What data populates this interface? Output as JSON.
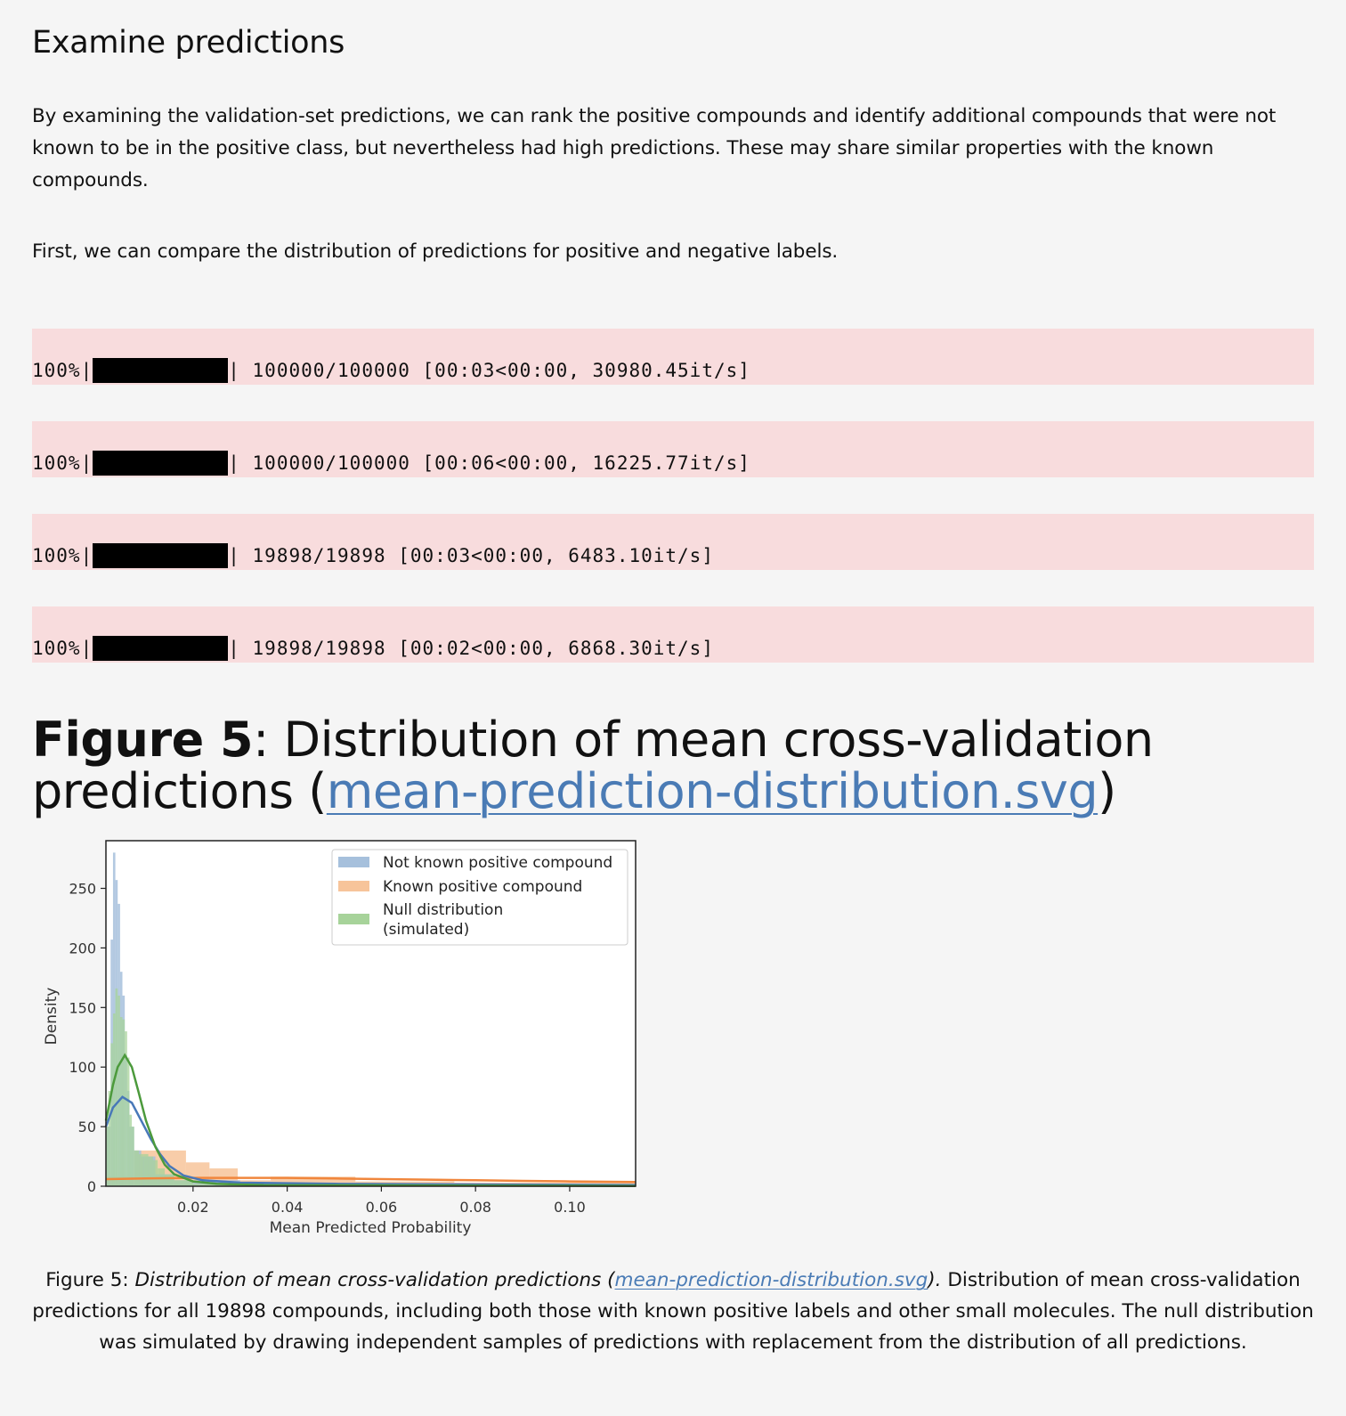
{
  "heading": "Examine predictions",
  "paragraphs": [
    "By examining the validation-set predictions, we can rank the positive compounds and identify additional compounds that were not known to be in the positive class, but nevertheless had high predictions. These may share similar properties with the known compounds.",
    "First, we can compare the distribution of predictions for positive and negative labels."
  ],
  "progress_bars": [
    {
      "percent": "100%",
      "fraction": 1.0,
      "text": "100000/100000 [00:03<00:00, 30980.45it/s]"
    },
    {
      "percent": "100%",
      "fraction": 1.0,
      "text": "100000/100000 [00:06<00:00, 16225.77it/s]"
    },
    {
      "percent": "100%",
      "fraction": 1.0,
      "text": "19898/19898 [00:03<00:00, 6483.10it/s]"
    },
    {
      "percent": "100%",
      "fraction": 1.0,
      "text": "19898/19898 [00:02<00:00, 6868.30it/s]"
    }
  ],
  "figure": {
    "label": "Figure 5",
    "title_rest": ": Distribution of mean cross-validation predictions (",
    "link_text": "mean-prediction-distribution.svg",
    "close": ")",
    "caption_label": "Figure 5",
    "caption_colon": ": ",
    "caption_italic": "Distribution of mean cross-validation predictions (",
    "caption_link": "mean-prediction-distribution.svg",
    "caption_italic_close": ").",
    "caption_text": " Distribution of mean cross-validation predictions for all 19898 compounds, including both those with known positive labels and other small molecules. The null distribution was simulated by drawing independent samples of predictions with replacement from the distribution of all predictions."
  },
  "chart_data": {
    "type": "histogram",
    "xlabel": "Mean Predicted Probability",
    "ylabel": "Density",
    "xlim": [
      0.0015,
      0.114
    ],
    "ylim": [
      0,
      290
    ],
    "xticks": [
      "0.02",
      "0.04",
      "0.06",
      "0.08",
      "0.10"
    ],
    "xtick_values": [
      0.02,
      0.04,
      0.06,
      0.08,
      0.1
    ],
    "yticks": [
      "0",
      "50",
      "100",
      "150",
      "200",
      "250"
    ],
    "ytick_values": [
      0,
      50,
      100,
      150,
      200,
      250
    ],
    "legend_position": "top-right",
    "series": [
      {
        "name": "Not known positive compound",
        "color": "#a6c0dc",
        "line_color": "#4878b8",
        "bins": [
          [
            0.0015,
            0.0025,
            50
          ],
          [
            0.0025,
            0.003,
            207
          ],
          [
            0.003,
            0.0035,
            280
          ],
          [
            0.0035,
            0.004,
            257
          ],
          [
            0.004,
            0.0045,
            237
          ],
          [
            0.0045,
            0.005,
            180
          ],
          [
            0.005,
            0.0055,
            160
          ],
          [
            0.0055,
            0.006,
            110
          ],
          [
            0.006,
            0.0065,
            80
          ],
          [
            0.0065,
            0.0075,
            50
          ],
          [
            0.0075,
            0.009,
            30
          ],
          [
            0.009,
            0.012,
            25
          ],
          [
            0.012,
            0.016,
            10
          ],
          [
            0.016,
            0.03,
            5
          ],
          [
            0.03,
            0.05,
            3
          ],
          [
            0.05,
            0.114,
            2
          ]
        ],
        "kde": [
          [
            0.0015,
            50
          ],
          [
            0.003,
            66
          ],
          [
            0.005,
            75
          ],
          [
            0.007,
            70
          ],
          [
            0.009,
            55
          ],
          [
            0.011,
            40
          ],
          [
            0.013,
            27
          ],
          [
            0.015,
            17
          ],
          [
            0.018,
            9
          ],
          [
            0.022,
            5
          ],
          [
            0.03,
            3
          ],
          [
            0.05,
            2
          ],
          [
            0.08,
            1.5
          ],
          [
            0.114,
            1
          ]
        ]
      },
      {
        "name": "Known positive compound",
        "color": "#f7c49a",
        "line_color": "#f0863c",
        "bins": [
          [
            0.0015,
            0.0075,
            8
          ],
          [
            0.0075,
            0.0125,
            30
          ],
          [
            0.0125,
            0.0185,
            30
          ],
          [
            0.0185,
            0.0235,
            20
          ],
          [
            0.0235,
            0.0295,
            15
          ],
          [
            0.0295,
            0.0365,
            5
          ],
          [
            0.0365,
            0.0545,
            8
          ],
          [
            0.0545,
            0.0755,
            4
          ],
          [
            0.0755,
            0.114,
            3
          ]
        ],
        "kde": [
          [
            0.0015,
            6
          ],
          [
            0.01,
            6.5
          ],
          [
            0.02,
            7
          ],
          [
            0.03,
            7
          ],
          [
            0.04,
            7
          ],
          [
            0.05,
            6.5
          ],
          [
            0.06,
            6
          ],
          [
            0.07,
            5.5
          ],
          [
            0.08,
            5
          ],
          [
            0.09,
            4.5
          ],
          [
            0.1,
            4
          ],
          [
            0.114,
            3.5
          ]
        ]
      },
      {
        "name": "Null distribution\n(simulated)",
        "legend_lines": [
          "Null distribution",
          "(simulated)"
        ],
        "color": "#a7d39a",
        "line_color": "#4c9a3c",
        "bins": [
          [
            0.0015,
            0.002,
            50
          ],
          [
            0.002,
            0.0025,
            80
          ],
          [
            0.0025,
            0.003,
            120
          ],
          [
            0.003,
            0.0035,
            145
          ],
          [
            0.0035,
            0.004,
            166
          ],
          [
            0.004,
            0.0045,
            160
          ],
          [
            0.0045,
            0.005,
            142
          ],
          [
            0.005,
            0.0055,
            140
          ],
          [
            0.0055,
            0.006,
            130
          ],
          [
            0.006,
            0.0065,
            108
          ],
          [
            0.0065,
            0.007,
            60
          ],
          [
            0.007,
            0.0075,
            50
          ],
          [
            0.0075,
            0.0085,
            30
          ],
          [
            0.0085,
            0.0095,
            27
          ],
          [
            0.0095,
            0.0105,
            27
          ],
          [
            0.0105,
            0.0115,
            25
          ],
          [
            0.0115,
            0.0125,
            22
          ],
          [
            0.0125,
            0.014,
            15
          ],
          [
            0.014,
            0.016,
            10
          ],
          [
            0.016,
            0.02,
            5
          ],
          [
            0.02,
            0.03,
            2
          ]
        ],
        "kde": [
          [
            0.0015,
            55
          ],
          [
            0.003,
            85
          ],
          [
            0.004,
            100
          ],
          [
            0.0055,
            110
          ],
          [
            0.007,
            100
          ],
          [
            0.0085,
            78
          ],
          [
            0.01,
            55
          ],
          [
            0.012,
            33
          ],
          [
            0.014,
            18
          ],
          [
            0.016,
            10
          ],
          [
            0.02,
            4
          ],
          [
            0.025,
            2
          ],
          [
            0.035,
            1
          ],
          [
            0.114,
            0.2
          ]
        ]
      }
    ]
  }
}
